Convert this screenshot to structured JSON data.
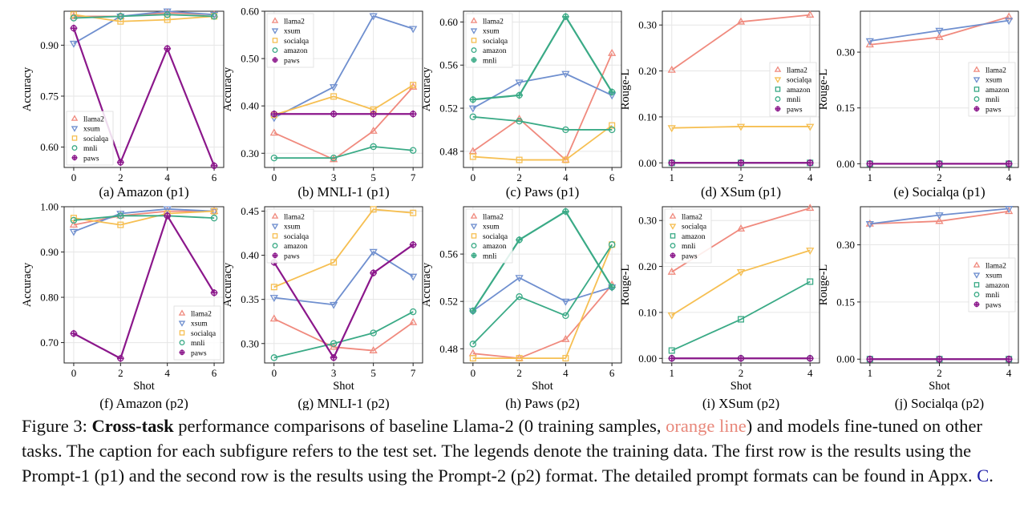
{
  "colors": {
    "llama2": "#f08a7e",
    "xsum": "#6f8fcf",
    "socialqa": "#f6bf52",
    "amazon": "#3aaa86",
    "mnli": "#3aaa86",
    "paws": "#8b178b",
    "grid": "#e6e6e6"
  },
  "caption": {
    "prefix": "Figure 3: ",
    "bold": "Cross-task",
    "text1": " performance comparisons of baseline Llama-2 (0 training samples, ",
    "highlight": "orange line",
    "text2": ") and models fine-tuned on other tasks. The caption for each subfigure refers to the test set. The legends denote the training data. The first row is the results using the Prompt-1 (p1) and the second row is the results using the Prompt-2 (p2) format. The detailed prompt formats can be found in Appx. ",
    "link": "C",
    "end": "."
  },
  "chart_data": [
    {
      "type": "line",
      "subtitle": "(a) Amazon (p1)",
      "ylabel": "Accuracy",
      "xlabel": "",
      "x": [
        0,
        2,
        4,
        6
      ],
      "xlim": [
        0,
        6
      ],
      "ylim": [
        0.54,
        1.0
      ],
      "yticks": [
        0.6,
        0.75,
        0.9
      ],
      "grid": true,
      "legend": "bottom-left",
      "series": [
        {
          "name": "llama2",
          "marker": "tri-up",
          "values": [
            0.985,
            0.985,
            0.995,
            0.99
          ]
        },
        {
          "name": "xsum",
          "marker": "tri-down",
          "values": [
            0.905,
            0.985,
            1.0,
            0.99
          ]
        },
        {
          "name": "socialqa",
          "marker": "square",
          "values": [
            0.99,
            0.97,
            0.975,
            0.985
          ]
        },
        {
          "name": "mnli",
          "marker": "circle",
          "values": [
            0.98,
            0.985,
            0.99,
            0.985
          ]
        },
        {
          "name": "paws",
          "marker": "plus",
          "values": [
            0.95,
            0.555,
            0.89,
            0.545
          ]
        }
      ]
    },
    {
      "type": "line",
      "subtitle": "(b) MNLI-1 (p1)",
      "ylabel": "Accuracy",
      "xlabel": "",
      "x": [
        0,
        3,
        5,
        7
      ],
      "xlim": [
        0,
        7
      ],
      "ylim": [
        0.27,
        0.6
      ],
      "yticks": [
        0.3,
        0.4,
        0.5,
        0.6
      ],
      "grid": true,
      "legend": "top-left",
      "series": [
        {
          "name": "llama2",
          "marker": "tri-up",
          "values": [
            0.343,
            0.287,
            0.347,
            0.44
          ]
        },
        {
          "name": "xsum",
          "marker": "tri-down",
          "values": [
            0.375,
            0.44,
            0.59,
            0.563
          ]
        },
        {
          "name": "socialqa",
          "marker": "square",
          "values": [
            0.381,
            0.42,
            0.392,
            0.444
          ]
        },
        {
          "name": "amazon",
          "marker": "circle",
          "values": [
            0.29,
            0.29,
            0.314,
            0.306
          ]
        },
        {
          "name": "paws",
          "marker": "plus",
          "values": [
            0.383,
            0.383,
            0.383,
            0.383
          ]
        }
      ]
    },
    {
      "type": "line",
      "subtitle": "(c) Paws (p1)",
      "ylabel": "Accuracy",
      "xlabel": "",
      "x": [
        0,
        2,
        4,
        6
      ],
      "xlim": [
        0,
        6
      ],
      "ylim": [
        0.465,
        0.61
      ],
      "yticks": [
        0.48,
        0.52,
        0.56,
        0.6
      ],
      "grid": true,
      "legend": "top-left",
      "series": [
        {
          "name": "llama2",
          "marker": "tri-up",
          "values": [
            0.48,
            0.51,
            0.472,
            0.571
          ]
        },
        {
          "name": "xsum",
          "marker": "tri-down",
          "values": [
            0.52,
            0.544,
            0.552,
            0.532
          ]
        },
        {
          "name": "socialqa",
          "marker": "square",
          "values": [
            0.475,
            0.472,
            0.472,
            0.504
          ]
        },
        {
          "name": "amazon",
          "marker": "circle",
          "values": [
            0.512,
            0.508,
            0.5,
            0.5
          ]
        },
        {
          "name": "mnli",
          "marker": "plus",
          "values": [
            0.528,
            0.532,
            0.605,
            0.535
          ]
        }
      ]
    },
    {
      "type": "line",
      "subtitle": "(d) XSum (p1)",
      "ylabel": "Rouge-L",
      "xlabel": "",
      "x": [
        1,
        2,
        4
      ],
      "xtick_positions": [
        0,
        1,
        2
      ],
      "xlim": [
        0,
        2
      ],
      "ylim": [
        -0.01,
        0.33
      ],
      "yticks": [
        0.0,
        0.1,
        0.2,
        0.3
      ],
      "grid": true,
      "legend": "center-right",
      "series": [
        {
          "name": "llama2",
          "marker": "tri-up",
          "values": [
            0.202,
            0.307,
            0.322
          ]
        },
        {
          "name": "socialqa",
          "marker": "tri-down",
          "values": [
            0.076,
            0.079,
            0.079
          ]
        },
        {
          "name": "amazon",
          "marker": "square",
          "values": [
            0.0,
            0.0,
            0.0
          ]
        },
        {
          "name": "mnli",
          "marker": "circle",
          "values": [
            0.0,
            0.0,
            0.0
          ]
        },
        {
          "name": "paws",
          "marker": "plus",
          "values": [
            0.0,
            0.0,
            0.0
          ]
        }
      ]
    },
    {
      "type": "line",
      "subtitle": "(e) Socialqa (p1)",
      "ylabel": "Rouge-L",
      "xlabel": "",
      "x": [
        1,
        2,
        4
      ],
      "xtick_positions": [
        0,
        1,
        2
      ],
      "xlim": [
        0,
        2
      ],
      "ylim": [
        -0.01,
        0.41
      ],
      "yticks": [
        0.0,
        0.15,
        0.3
      ],
      "grid": true,
      "legend": "center-right",
      "series": [
        {
          "name": "llama2",
          "marker": "tri-up",
          "values": [
            0.32,
            0.34,
            0.395
          ]
        },
        {
          "name": "xsum",
          "marker": "tri-down",
          "values": [
            0.33,
            0.358,
            0.385
          ]
        },
        {
          "name": "amazon",
          "marker": "square",
          "values": [
            0.0,
            0.0,
            0.0
          ]
        },
        {
          "name": "mnli",
          "marker": "circle",
          "values": [
            0.0,
            0.0,
            0.0
          ]
        },
        {
          "name": "paws",
          "marker": "plus",
          "values": [
            0.0,
            0.0,
            0.0
          ]
        }
      ]
    },
    {
      "type": "line",
      "subtitle": "(f) Amazon (p2)",
      "ylabel": "Accuracy",
      "xlabel": "Shot",
      "x": [
        0,
        2,
        4,
        6
      ],
      "xlim": [
        0,
        6
      ],
      "ylim": [
        0.655,
        1.0
      ],
      "yticks": [
        0.7,
        0.8,
        0.9,
        1.0
      ],
      "grid": true,
      "legend": "bottom-right",
      "series": [
        {
          "name": "llama2",
          "marker": "tri-up",
          "values": [
            0.96,
            0.98,
            0.99,
            0.99
          ]
        },
        {
          "name": "xsum",
          "marker": "tri-down",
          "values": [
            0.945,
            0.985,
            0.995,
            0.99
          ]
        },
        {
          "name": "socialqa",
          "marker": "square",
          "values": [
            0.975,
            0.96,
            0.985,
            0.99
          ]
        },
        {
          "name": "mnli",
          "marker": "circle",
          "values": [
            0.97,
            0.98,
            0.98,
            0.975
          ]
        },
        {
          "name": "paws",
          "marker": "plus",
          "values": [
            0.72,
            0.665,
            0.98,
            0.81
          ]
        }
      ]
    },
    {
      "type": "line",
      "subtitle": "(g) MNLI-1 (p2)",
      "ylabel": "Accuracy",
      "xlabel": "Shot",
      "x": [
        0,
        3,
        5,
        7
      ],
      "xlim": [
        0,
        7
      ],
      "ylim": [
        0.278,
        0.455
      ],
      "yticks": [
        0.3,
        0.35,
        0.4,
        0.45
      ],
      "grid": true,
      "legend": "top-left",
      "series": [
        {
          "name": "llama2",
          "marker": "tri-up",
          "values": [
            0.328,
            0.296,
            0.292,
            0.324
          ]
        },
        {
          "name": "xsum",
          "marker": "tri-down",
          "values": [
            0.352,
            0.344,
            0.404,
            0.376
          ]
        },
        {
          "name": "socialqa",
          "marker": "square",
          "values": [
            0.364,
            0.392,
            0.452,
            0.448
          ]
        },
        {
          "name": "amazon",
          "marker": "circle",
          "values": [
            0.284,
            0.3,
            0.312,
            0.336
          ]
        },
        {
          "name": "paws",
          "marker": "plus",
          "values": [
            0.392,
            0.284,
            0.38,
            0.412
          ]
        }
      ]
    },
    {
      "type": "line",
      "subtitle": "(h) Paws (p2)",
      "ylabel": "Accuracy",
      "xlabel": "Shot",
      "x": [
        0,
        2,
        4,
        6
      ],
      "xlim": [
        0,
        6
      ],
      "ylim": [
        0.468,
        0.6
      ],
      "yticks": [
        0.48,
        0.52,
        0.56
      ],
      "grid": true,
      "legend": "top-left",
      "series": [
        {
          "name": "llama2",
          "marker": "tri-up",
          "values": [
            0.476,
            0.472,
            0.488,
            0.534
          ]
        },
        {
          "name": "xsum",
          "marker": "tri-down",
          "values": [
            0.512,
            0.54,
            0.52,
            0.532
          ]
        },
        {
          "name": "socialqa",
          "marker": "square",
          "values": [
            0.472,
            0.472,
            0.472,
            0.568
          ]
        },
        {
          "name": "amazon",
          "marker": "circle",
          "values": [
            0.484,
            0.524,
            0.508,
            0.568
          ]
        },
        {
          "name": "mnli",
          "marker": "plus",
          "values": [
            0.512,
            0.572,
            0.596,
            0.532
          ]
        }
      ]
    },
    {
      "type": "line",
      "subtitle": "(i) XSum (p2)",
      "ylabel": "Rouge-L",
      "xlabel": "Shot",
      "x": [
        1,
        2,
        4
      ],
      "xtick_positions": [
        0,
        1,
        2
      ],
      "xlim": [
        0,
        2
      ],
      "ylim": [
        -0.01,
        0.33
      ],
      "yticks": [
        0.0,
        0.1,
        0.2,
        0.3
      ],
      "grid": true,
      "legend": "top-left",
      "series": [
        {
          "name": "llama2",
          "marker": "tri-up",
          "values": [
            0.188,
            0.282,
            0.327
          ]
        },
        {
          "name": "socialqa",
          "marker": "tri-down",
          "values": [
            0.094,
            0.188,
            0.235
          ]
        },
        {
          "name": "amazon",
          "marker": "square",
          "values": [
            0.017,
            0.085,
            0.167
          ]
        },
        {
          "name": "mnli",
          "marker": "circle",
          "values": [
            0.0,
            0.0,
            0.0
          ]
        },
        {
          "name": "paws",
          "marker": "plus",
          "values": [
            0.0,
            0.0,
            0.0
          ]
        }
      ]
    },
    {
      "type": "line",
      "subtitle": "(j) Socialqa (p2)",
      "ylabel": "Rouge-L",
      "xlabel": "Shot",
      "x": [
        1,
        2,
        4
      ],
      "xtick_positions": [
        0,
        1,
        2
      ],
      "xlim": [
        0,
        2
      ],
      "ylim": [
        -0.01,
        0.4
      ],
      "yticks": [
        0.0,
        0.15,
        0.3
      ],
      "grid": true,
      "legend": "center-right",
      "series": [
        {
          "name": "llama2",
          "marker": "tri-up",
          "values": [
            0.355,
            0.362,
            0.388
          ]
        },
        {
          "name": "xsum",
          "marker": "tri-down",
          "values": [
            0.355,
            0.378,
            0.395
          ]
        },
        {
          "name": "amazon",
          "marker": "square",
          "values": [
            0.0,
            0.0,
            0.0
          ]
        },
        {
          "name": "mnli",
          "marker": "circle",
          "values": [
            0.0,
            0.0,
            0.0
          ]
        },
        {
          "name": "paws",
          "marker": "plus",
          "values": [
            0.0,
            0.0,
            0.0
          ]
        }
      ]
    }
  ]
}
